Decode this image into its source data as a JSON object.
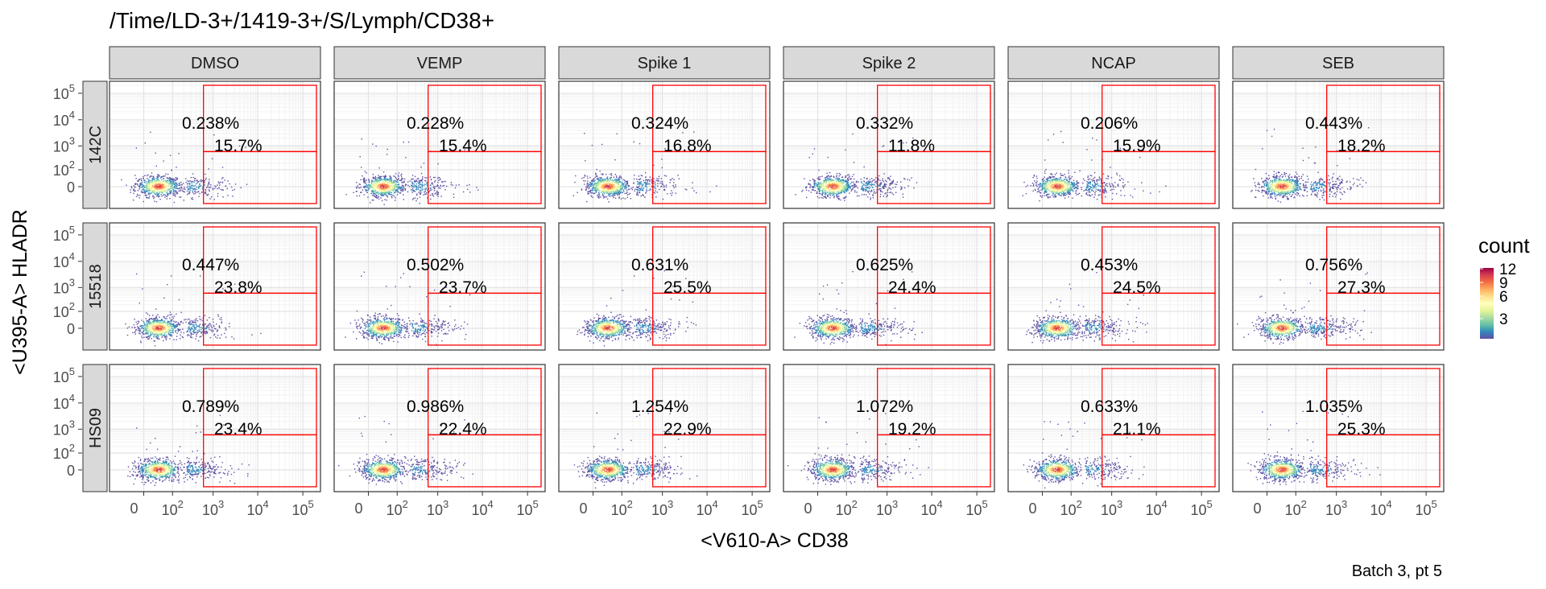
{
  "chart_data": {
    "type": "scatter",
    "subtype": "faceted flow-cytometry density plot with gates",
    "title": "/Time/LD-3+/1419-3+/S/Lymph/CD38+",
    "caption": "Batch 3, pt 5",
    "xlabel": "<V610-A> CD38",
    "ylabel": "<U395-A> HLADR",
    "x_scale": "biexponential",
    "y_scale": "biexponential",
    "x_ticks": [
      "0",
      "10^2",
      "10^3",
      "10^4",
      "10^5"
    ],
    "y_ticks": [
      "0",
      "10^2",
      "10^3",
      "10^4",
      "10^5"
    ],
    "columns": [
      "DMSO",
      "VEMP",
      "Spike 1",
      "Spike 2",
      "NCAP",
      "SEB"
    ],
    "rows": [
      "142C",
      "15518",
      "HS09"
    ],
    "gates": {
      "upper_gate": {
        "x_min": 600,
        "x_max": 200000,
        "y_min": 600,
        "y_max": 200000
      },
      "lower_gate": {
        "x_min": 600,
        "x_max": 200000,
        "y_min": -100,
        "y_max": 600
      }
    },
    "percentages": {
      "142C": {
        "DMSO": [
          "0.238%",
          "15.7%"
        ],
        "VEMP": [
          "0.228%",
          "15.4%"
        ],
        "Spike 1": [
          "0.324%",
          "16.8%"
        ],
        "Spike 2": [
          "0.332%",
          "11.8%"
        ],
        "NCAP": [
          "0.206%",
          "15.9%"
        ],
        "SEB": [
          "0.443%",
          "18.2%"
        ]
      },
      "15518": {
        "DMSO": [
          "0.447%",
          "23.8%"
        ],
        "VEMP": [
          "0.502%",
          "23.7%"
        ],
        "Spike 1": [
          "0.631%",
          "25.5%"
        ],
        "Spike 2": [
          "0.625%",
          "24.4%"
        ],
        "NCAP": [
          "0.453%",
          "24.5%"
        ],
        "SEB": [
          "0.756%",
          "27.3%"
        ]
      },
      "HS09": {
        "DMSO": [
          "0.789%",
          "23.4%"
        ],
        "VEMP": [
          "0.986%",
          "22.4%"
        ],
        "Spike 1": [
          "1.254%",
          "22.9%"
        ],
        "Spike 2": [
          "1.072%",
          "19.2%"
        ],
        "NCAP": [
          "0.633%",
          "21.1%"
        ],
        "SEB": [
          "1.035%",
          "25.3%"
        ]
      }
    },
    "legend": {
      "title": "count",
      "ticks": [
        "3",
        "6",
        "9",
        "12"
      ],
      "colors": [
        "#5e4fa2",
        "#3288bd",
        "#66c2a5",
        "#abdda4",
        "#e6f598",
        "#ffffbf",
        "#fee08b",
        "#fdae61",
        "#f46d43",
        "#d53e4f",
        "#9e0142"
      ],
      "position": "right"
    },
    "gate_color": "#ff0000",
    "grid": true
  }
}
